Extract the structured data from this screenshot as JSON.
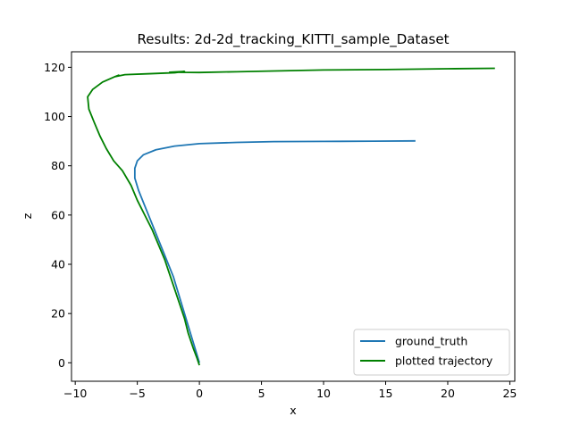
{
  "chart_data": {
    "type": "line",
    "title": "Results: 2d-2d_tracking_KITTI_sample_Dataset",
    "xlabel": "x",
    "ylabel": "z",
    "xlim": [
      -10.3,
      25.4
    ],
    "ylim": [
      -7.5,
      126.3
    ],
    "xticks": [
      -10,
      -5,
      0,
      5,
      10,
      15,
      20,
      25
    ],
    "yticks": [
      0,
      20,
      40,
      60,
      80,
      100,
      120
    ],
    "grid": false,
    "legend_position": "lower-right",
    "series": [
      {
        "name": "ground_truth",
        "color": "#1f77b4",
        "points": [
          [
            0.0,
            0.0
          ],
          [
            -0.3,
            5.0
          ],
          [
            -0.6,
            10.0
          ],
          [
            -0.9,
            15.0
          ],
          [
            -1.2,
            20.0
          ],
          [
            -1.5,
            25.0
          ],
          [
            -1.8,
            30.0
          ],
          [
            -2.1,
            35.0
          ],
          [
            -2.5,
            40.0
          ],
          [
            -2.9,
            45.0
          ],
          [
            -3.3,
            50.0
          ],
          [
            -3.7,
            55.0
          ],
          [
            -4.1,
            60.0
          ],
          [
            -4.5,
            65.0
          ],
          [
            -4.9,
            70.0
          ],
          [
            -5.2,
            75.0
          ],
          [
            -5.2,
            79.0
          ],
          [
            -5.0,
            82.0
          ],
          [
            -4.5,
            84.5
          ],
          [
            -3.5,
            86.5
          ],
          [
            -2.0,
            88.0
          ],
          [
            0.0,
            89.0
          ],
          [
            3.0,
            89.5
          ],
          [
            6.0,
            89.8
          ],
          [
            10.0,
            89.9
          ],
          [
            14.0,
            90.0
          ],
          [
            17.4,
            90.1
          ]
        ]
      },
      {
        "name": "plotted trajectory",
        "color": "#008000",
        "points": [
          [
            0.0,
            -1.0
          ],
          [
            -0.2,
            2.0
          ],
          [
            -0.5,
            6.0
          ],
          [
            -0.9,
            12.0
          ],
          [
            -1.2,
            18.0
          ],
          [
            -1.6,
            24.0
          ],
          [
            -2.0,
            30.0
          ],
          [
            -2.4,
            36.0
          ],
          [
            -2.8,
            42.0
          ],
          [
            -3.3,
            48.0
          ],
          [
            -3.8,
            54.0
          ],
          [
            -4.4,
            60.0
          ],
          [
            -5.0,
            66.0
          ],
          [
            -5.5,
            72.0
          ],
          [
            -6.2,
            78.0
          ],
          [
            -6.9,
            82.0
          ],
          [
            -7.5,
            87.0
          ],
          [
            -8.0,
            92.0
          ],
          [
            -8.5,
            98.0
          ],
          [
            -8.9,
            103.0
          ],
          [
            -9.0,
            108.0
          ],
          [
            -8.6,
            111.0
          ],
          [
            -7.8,
            114.0
          ],
          [
            -6.9,
            116.0
          ],
          [
            -6.5,
            116.8
          ],
          [
            -6.8,
            116.2
          ],
          [
            -6.0,
            117.0
          ],
          [
            -4.0,
            117.4
          ],
          [
            -2.0,
            117.8
          ],
          [
            -1.2,
            118.3
          ],
          [
            -2.4,
            118.0
          ],
          [
            0.0,
            117.9
          ],
          [
            3.0,
            118.2
          ],
          [
            6.0,
            118.5
          ],
          [
            10.0,
            118.9
          ],
          [
            15.0,
            119.1
          ],
          [
            20.0,
            119.4
          ],
          [
            23.8,
            119.6
          ]
        ]
      }
    ]
  }
}
